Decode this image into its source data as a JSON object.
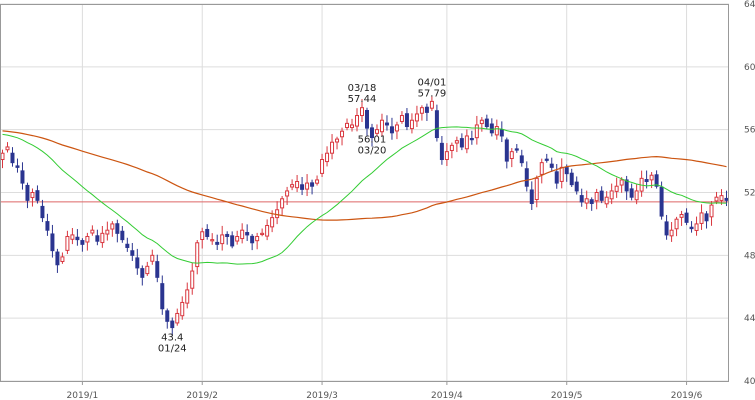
{
  "chart_data": {
    "type": "candlestick",
    "title": "",
    "xlabel": "",
    "ylabel": "",
    "ylim": [
      40,
      64
    ],
    "y_ticks": [
      40,
      44,
      48,
      52,
      56,
      60,
      64
    ],
    "y_axis_position": "right",
    "grid": true,
    "x_tick_labels": [
      "2019/1",
      "2019/2",
      "2019/3",
      "2019/4",
      "2019/5",
      "2019/6"
    ],
    "x_tick_index": [
      16,
      40,
      64,
      89,
      113,
      137
    ],
    "n_sessions": 146,
    "reference_line": 51.4,
    "colors": {
      "up": "#d9363e",
      "down": "#2b3590",
      "ma_short": "#33cc33",
      "ma_long": "#cc5511",
      "reference": "#dd6666",
      "grid": "#dddddd",
      "frame": "#999999"
    },
    "close": [
      54.5,
      54.9,
      53.9,
      53.6,
      52.6,
      51.5,
      52.0,
      51.5,
      50.4,
      49.6,
      48.3,
      47.4,
      47.9,
      49.2,
      49.3,
      49.0,
      48.7,
      49.2,
      49.6,
      48.9,
      49.4,
      49.6,
      50.0,
      49.4,
      49.0,
      48.5,
      48.0,
      47.2,
      46.6,
      47.3,
      48.0,
      46.6,
      44.6,
      43.8,
      43.4,
      44.3,
      45.0,
      45.8,
      47.0,
      48.8,
      49.5,
      49.2,
      49.0,
      48.7,
      49.3,
      49.2,
      48.6,
      49.2,
      49.6,
      49.3,
      48.8,
      49.2,
      49.4,
      49.9,
      50.4,
      50.9,
      51.6,
      52.1,
      52.5,
      52.7,
      52.2,
      52.6,
      52.4,
      52.8,
      54.1,
      54.5,
      55.2,
      55.4,
      55.9,
      56.4,
      56.3,
      56.9,
      57.4,
      56.1,
      55.5,
      56.0,
      56.6,
      56.3,
      55.8,
      56.3,
      56.9,
      56.2,
      56.6,
      57.0,
      57.4,
      57.1,
      57.8,
      55.5,
      54.1,
      54.6,
      55.0,
      55.3,
      54.9,
      55.6,
      55.4,
      56.3,
      56.6,
      56.2,
      55.8,
      56.2,
      55.6,
      54.0,
      54.6,
      54.7,
      53.9,
      52.4,
      51.3,
      52.9,
      53.9,
      54.1,
      53.6,
      52.6,
      53.6,
      53.2,
      52.5,
      52.1,
      51.4,
      51.6,
      51.3,
      52.0,
      51.5,
      51.7,
      52.1,
      52.4,
      52.8,
      52.1,
      51.7,
      52.1,
      52.9,
      52.7,
      53.1,
      52.4,
      50.5,
      49.3,
      49.6,
      50.3,
      50.6,
      50.1,
      49.7,
      50.0,
      50.7,
      50.2,
      51.2,
      51.7,
      51.8,
      51.5
    ],
    "annotations": [
      {
        "date": "03/18",
        "value": 57.44,
        "type": "high"
      },
      {
        "date": "03/20",
        "value": 56.01,
        "type": "low"
      },
      {
        "date": "04/01",
        "value": 57.79,
        "type": "high"
      },
      {
        "date": "01/24",
        "value": 43.4,
        "type": "low"
      }
    ],
    "annotation_index": [
      72,
      74,
      86,
      34
    ]
  }
}
